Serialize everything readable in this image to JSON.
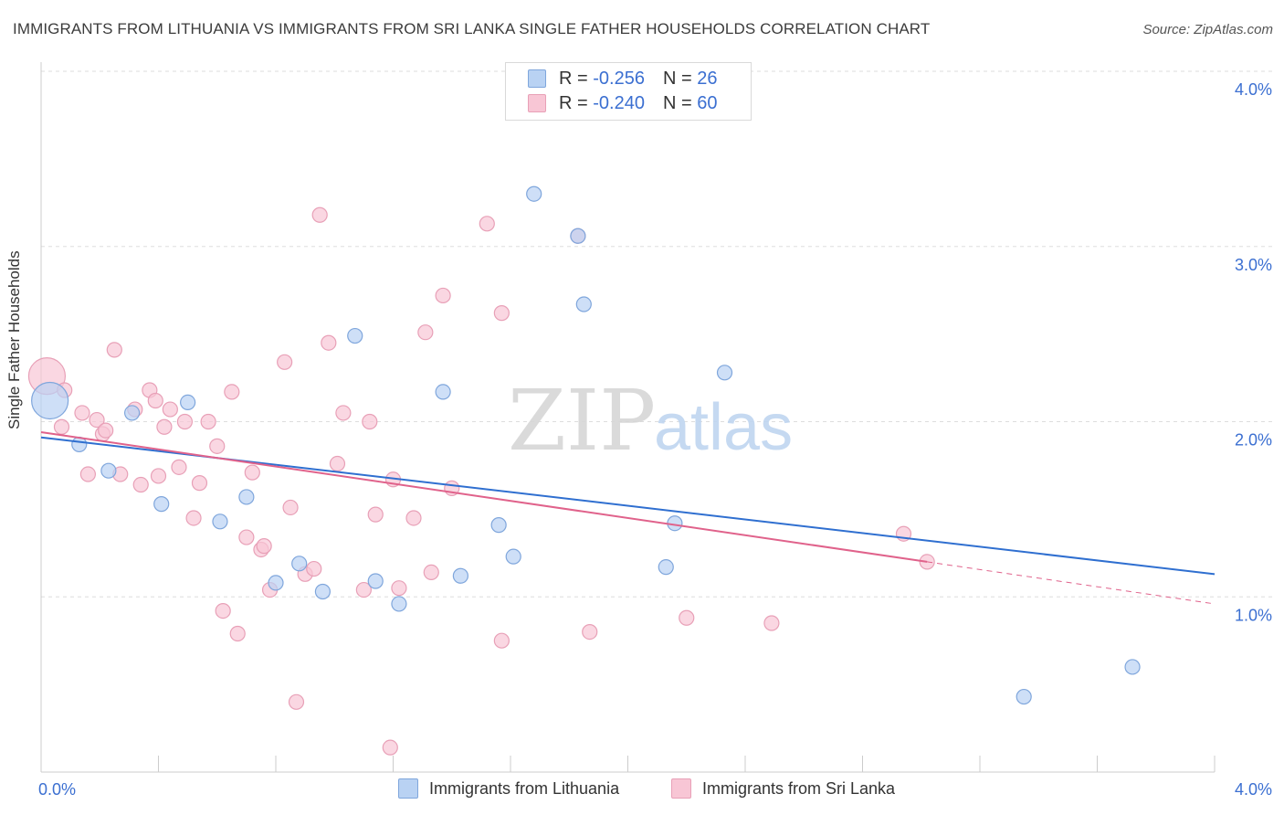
{
  "title": "IMMIGRANTS FROM LITHUANIA VS IMMIGRANTS FROM SRI LANKA SINGLE FATHER HOUSEHOLDS CORRELATION CHART",
  "source": "Source: ZipAtlas.com",
  "watermark": {
    "zip": "ZIP",
    "atlas": "atlas"
  },
  "colors": {
    "lithuania_fill": "#b9d2f3",
    "lithuania_stroke": "#7fa6dc",
    "lithuania_line": "#2f6fd0",
    "srilanka_fill": "#f8c6d5",
    "srilanka_stroke": "#e8a0b7",
    "srilanka_line": "#e0628b",
    "tick_label": "#3b6fd1",
    "grid": "#dddddd"
  },
  "legend": {
    "rows": [
      {
        "r_label": "R = ",
        "r_value": "-0.256",
        "n_label": "N = ",
        "n_value": "26"
      },
      {
        "r_label": "R = ",
        "r_value": "-0.240",
        "n_label": "N = ",
        "n_value": "60"
      }
    ]
  },
  "bottom_legend": [
    "Immigrants from Lithuania",
    "Immigrants from Sri Lanka"
  ],
  "chart_data": {
    "type": "scatter",
    "ylabel": "Single Father Households",
    "xlim": [
      0,
      4.0
    ],
    "ylim": [
      0,
      4.0
    ],
    "x_tick_labels": {
      "left": "0.0%",
      "right": "4.0%"
    },
    "y_ticks": [
      {
        "value": 1.0,
        "label": "1.0%"
      },
      {
        "value": 2.0,
        "label": "2.0%"
      },
      {
        "value": 3.0,
        "label": "3.0%"
      },
      {
        "value": 4.0,
        "label": "4.0%"
      }
    ],
    "grid": true,
    "series": [
      {
        "name": "Immigrants from Lithuania",
        "points": [
          {
            "x": 0.03,
            "y": 2.12,
            "size": "large"
          },
          {
            "x": 0.13,
            "y": 1.87
          },
          {
            "x": 0.23,
            "y": 1.72
          },
          {
            "x": 0.31,
            "y": 2.05
          },
          {
            "x": 0.41,
            "y": 1.53
          },
          {
            "x": 0.5,
            "y": 2.11
          },
          {
            "x": 0.61,
            "y": 1.43
          },
          {
            "x": 0.7,
            "y": 1.57
          },
          {
            "x": 0.8,
            "y": 1.08
          },
          {
            "x": 0.88,
            "y": 1.19
          },
          {
            "x": 0.96,
            "y": 1.03
          },
          {
            "x": 1.07,
            "y": 2.49
          },
          {
            "x": 1.14,
            "y": 1.09
          },
          {
            "x": 1.22,
            "y": 0.96
          },
          {
            "x": 1.37,
            "y": 2.17
          },
          {
            "x": 1.43,
            "y": 1.12
          },
          {
            "x": 1.56,
            "y": 1.41
          },
          {
            "x": 1.61,
            "y": 1.23
          },
          {
            "x": 1.68,
            "y": 3.3
          },
          {
            "x": 1.83,
            "y": 3.06
          },
          {
            "x": 1.85,
            "y": 2.67
          },
          {
            "x": 2.16,
            "y": 1.42
          },
          {
            "x": 2.13,
            "y": 1.17
          },
          {
            "x": 2.33,
            "y": 2.28
          },
          {
            "x": 3.35,
            "y": 0.43
          },
          {
            "x": 3.72,
            "y": 0.6
          }
        ],
        "trend": {
          "x": [
            0.0,
            4.0
          ],
          "y": [
            1.91,
            1.13
          ]
        }
      },
      {
        "name": "Immigrants from Sri Lanka",
        "points": [
          {
            "x": 0.02,
            "y": 2.26,
            "size": "large"
          },
          {
            "x": 0.07,
            "y": 1.97
          },
          {
            "x": 0.08,
            "y": 2.18
          },
          {
            "x": 0.14,
            "y": 2.05
          },
          {
            "x": 0.16,
            "y": 1.7
          },
          {
            "x": 0.19,
            "y": 2.01
          },
          {
            "x": 0.21,
            "y": 1.93
          },
          {
            "x": 0.22,
            "y": 1.95
          },
          {
            "x": 0.25,
            "y": 2.41
          },
          {
            "x": 0.27,
            "y": 1.7
          },
          {
            "x": 0.32,
            "y": 2.07
          },
          {
            "x": 0.34,
            "y": 1.64
          },
          {
            "x": 0.37,
            "y": 2.18
          },
          {
            "x": 0.39,
            "y": 2.12
          },
          {
            "x": 0.4,
            "y": 1.69
          },
          {
            "x": 0.42,
            "y": 1.97
          },
          {
            "x": 0.44,
            "y": 2.07
          },
          {
            "x": 0.47,
            "y": 1.74
          },
          {
            "x": 0.49,
            "y": 2.0
          },
          {
            "x": 0.52,
            "y": 1.45
          },
          {
            "x": 0.54,
            "y": 1.65
          },
          {
            "x": 0.57,
            "y": 2.0
          },
          {
            "x": 0.6,
            "y": 1.86
          },
          {
            "x": 0.62,
            "y": 0.92
          },
          {
            "x": 0.65,
            "y": 2.17
          },
          {
            "x": 0.67,
            "y": 0.79
          },
          {
            "x": 0.7,
            "y": 1.34
          },
          {
            "x": 0.72,
            "y": 1.71
          },
          {
            "x": 0.75,
            "y": 1.27
          },
          {
            "x": 0.76,
            "y": 1.29
          },
          {
            "x": 0.78,
            "y": 1.04
          },
          {
            "x": 0.83,
            "y": 2.34
          },
          {
            "x": 0.85,
            "y": 1.51
          },
          {
            "x": 0.87,
            "y": 0.4
          },
          {
            "x": 0.9,
            "y": 1.13
          },
          {
            "x": 0.93,
            "y": 1.16
          },
          {
            "x": 0.95,
            "y": 3.18
          },
          {
            "x": 0.98,
            "y": 2.45
          },
          {
            "x": 1.01,
            "y": 1.76
          },
          {
            "x": 1.03,
            "y": 2.05
          },
          {
            "x": 1.1,
            "y": 1.04
          },
          {
            "x": 1.12,
            "y": 2.0
          },
          {
            "x": 1.14,
            "y": 1.47
          },
          {
            "x": 1.19,
            "y": 0.14
          },
          {
            "x": 1.2,
            "y": 1.67
          },
          {
            "x": 1.22,
            "y": 1.05
          },
          {
            "x": 1.27,
            "y": 1.45
          },
          {
            "x": 1.31,
            "y": 2.51
          },
          {
            "x": 1.33,
            "y": 1.14
          },
          {
            "x": 1.37,
            "y": 2.72
          },
          {
            "x": 1.4,
            "y": 1.62
          },
          {
            "x": 1.52,
            "y": 3.13
          },
          {
            "x": 1.57,
            "y": 2.62
          },
          {
            "x": 1.57,
            "y": 0.75
          },
          {
            "x": 1.83,
            "y": 3.06
          },
          {
            "x": 1.87,
            "y": 0.8
          },
          {
            "x": 2.2,
            "y": 0.88
          },
          {
            "x": 2.49,
            "y": 0.85
          },
          {
            "x": 2.94,
            "y": 1.36
          },
          {
            "x": 3.02,
            "y": 1.2
          }
        ],
        "trend": {
          "x": [
            0.0,
            3.02
          ],
          "y": [
            1.94,
            1.2
          ]
        },
        "trend_dashed": {
          "x": [
            3.02,
            4.0
          ],
          "y": [
            1.2,
            0.96
          ]
        }
      }
    ]
  }
}
